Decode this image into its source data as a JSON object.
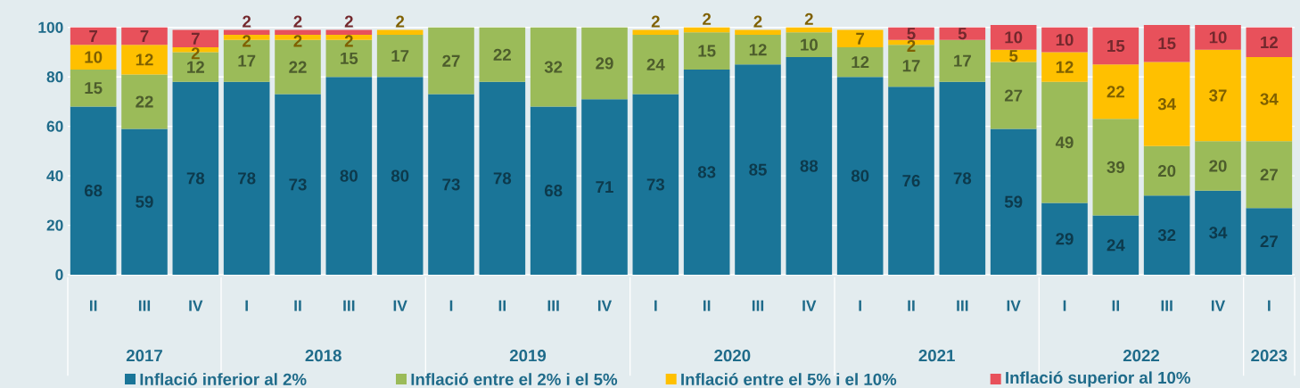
{
  "chart_data": {
    "type": "bar",
    "stacked": true,
    "data_labels": true,
    "grid": "y",
    "legend": "bottom",
    "categories": [
      "II",
      "III",
      "IV",
      "I",
      "II",
      "III",
      "IV",
      "I",
      "II",
      "III",
      "IV",
      "I",
      "II",
      "III",
      "IV",
      "I",
      "II",
      "III",
      "IV",
      "I",
      "II",
      "III",
      "IV",
      "I"
    ],
    "annotations": [
      "2017",
      "2018",
      "2019",
      "2020",
      "2021",
      "2022",
      "2023"
    ],
    "ylim": [
      0,
      101
    ],
    "yticks": [
      0,
      20,
      40,
      60,
      80,
      100
    ],
    "series": [
      {
        "name": "Inflació inferior al 2%",
        "color": "#1a7598",
        "values": [
          68,
          59,
          78,
          78,
          73,
          80,
          80,
          73,
          78,
          68,
          71,
          73,
          83,
          85,
          88,
          80,
          76,
          78,
          59,
          29,
          24,
          32,
          34,
          27
        ]
      },
      {
        "name": "Inflació entre el 2% i el 5%",
        "color": "#9bbb59",
        "values": [
          15,
          22,
          12,
          17,
          22,
          15,
          17,
          27,
          22,
          32,
          29,
          24,
          15,
          12,
          10,
          12,
          17,
          17,
          27,
          49,
          39,
          20,
          20,
          27
        ]
      },
      {
        "name": "Inflació entre el 5% i el 10%",
        "color": "#ffc000",
        "values": [
          10,
          12,
          2,
          2,
          2,
          2,
          2,
          null,
          null,
          null,
          null,
          2,
          2,
          2,
          2,
          7,
          2,
          null,
          5,
          12,
          22,
          34,
          37,
          34
        ]
      },
      {
        "name": "Inflació superior al 10%",
        "color": "#e8515b",
        "values": [
          7,
          7,
          7,
          2,
          2,
          2,
          null,
          null,
          null,
          null,
          null,
          null,
          null,
          null,
          null,
          null,
          5,
          5,
          10,
          10,
          15,
          15,
          10,
          12
        ]
      }
    ]
  }
}
